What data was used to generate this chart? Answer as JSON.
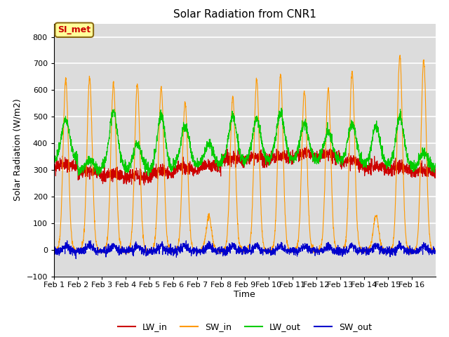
{
  "title": "Solar Radiation from CNR1",
  "xlabel": "Time",
  "ylabel": "Solar Radiation (W/m2)",
  "ylim": [
    -100,
    850
  ],
  "yticks": [
    -100,
    0,
    100,
    200,
    300,
    400,
    500,
    600,
    700,
    800
  ],
  "x_labels": [
    "Feb 1",
    "Feb 2",
    "Feb 3",
    "Feb 4",
    "Feb 5",
    "Feb 6",
    "Feb 7",
    "Feb 8",
    "Feb 9",
    "Feb 10",
    "Feb 11",
    "Feb 12",
    "Feb 13",
    "Feb 14",
    "Feb 15",
    "Feb 16"
  ],
  "n_days": 16,
  "pts_per_day": 144,
  "colors": {
    "LW_in": "#CC0000",
    "SW_in": "#FF9900",
    "LW_out": "#00CC00",
    "SW_out": "#0000CC"
  },
  "legend_label": "SI_met",
  "background_color": "#DCDCDC",
  "grid_color": "#FFFFFF",
  "seed": 42,
  "SW_in_peaks": [
    640,
    645,
    625,
    620,
    610,
    555,
    125,
    575,
    640,
    655,
    595,
    605,
    670,
    130,
    730,
    710
  ],
  "LW_in_bases": [
    310,
    285,
    270,
    265,
    280,
    295,
    305,
    330,
    335,
    340,
    350,
    345,
    320,
    300,
    295,
    285
  ],
  "LW_out_peaks": [
    490,
    335,
    520,
    400,
    510,
    465,
    400,
    500,
    495,
    515,
    475,
    445,
    475,
    465,
    500,
    365
  ],
  "LW_out_bases": [
    340,
    300,
    310,
    300,
    300,
    320,
    320,
    330,
    335,
    340,
    340,
    335,
    330,
    320,
    315,
    310
  ]
}
